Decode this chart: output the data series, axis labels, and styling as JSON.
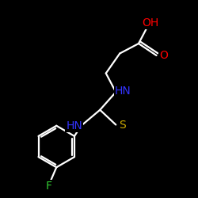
{
  "background_color": "#000000",
  "bond_color": "#ffffff",
  "atom_colors": {
    "N": "#3333ff",
    "S": "#ccaa00",
    "O": "#ff0000",
    "F": "#33cc33",
    "C": "#ffffff"
  },
  "figsize": [
    2.5,
    2.5
  ],
  "dpi": 100,
  "xlim": [
    0,
    10
  ],
  "ylim": [
    0,
    10
  ]
}
